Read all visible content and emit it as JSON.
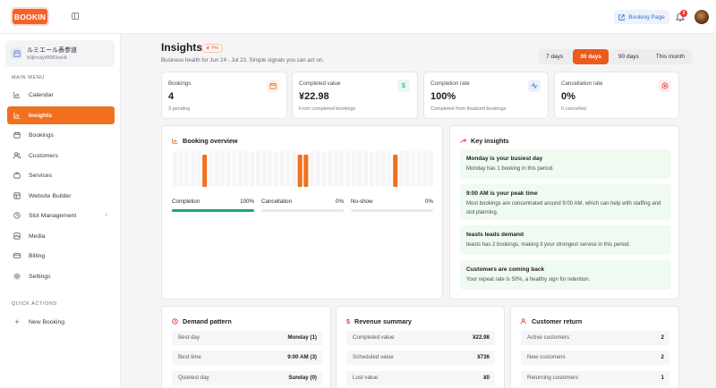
{
  "header": {
    "logo": "BOOKIN",
    "booking_page_label": "Booking Page",
    "notification_count": "5"
  },
  "sidebar": {
    "store_name": "ルミエール表参道",
    "store_id": "k0jlmulyW083orHt",
    "main_menu_label": "MAIN MENU",
    "items": [
      {
        "label": "Calendar",
        "icon": "calendar-icon"
      },
      {
        "label": "Insights",
        "icon": "bar-chart-icon"
      },
      {
        "label": "Bookings",
        "icon": "calendar-check-icon"
      },
      {
        "label": "Customers",
        "icon": "users-icon"
      },
      {
        "label": "Services",
        "icon": "briefcase-icon"
      },
      {
        "label": "Website Builder",
        "icon": "layout-icon"
      },
      {
        "label": "Slot Management",
        "icon": "clock-icon"
      },
      {
        "label": "Media",
        "icon": "image-icon"
      },
      {
        "label": "Billing",
        "icon": "credit-card-icon"
      },
      {
        "label": "Settings",
        "icon": "gear-icon"
      }
    ],
    "quick_actions_label": "QUICK ACTIONS",
    "new_booking_label": "New Booking"
  },
  "page": {
    "title": "Insights",
    "badge": "Pro",
    "subtitle": "Business health for Jun 24 - Jul 23. Simple signals you can act on.",
    "ranges": [
      "7 days",
      "30 days",
      "90 days",
      "This month"
    ],
    "active_range": "30 days"
  },
  "stats": [
    {
      "label": "Bookings",
      "value": "4",
      "sub": "3 pending",
      "icon": "calendar-icon",
      "color": "#f0701f",
      "bg": "#fff1e8"
    },
    {
      "label": "Completed value",
      "value": "¥22.98",
      "sub": "From completed bookings",
      "icon": "dollar-icon",
      "color": "#1fa86a",
      "bg": "#e9f8ef"
    },
    {
      "label": "Completion rate",
      "value": "100%",
      "sub": "Completed from finalized bookings",
      "icon": "pulse-icon",
      "color": "#3f6fc7",
      "bg": "#eaf0fb"
    },
    {
      "label": "Cancellation rate",
      "value": "0%",
      "sub": "0 cancelled",
      "icon": "cancel-icon",
      "color": "#e53935",
      "bg": "#fdecec"
    }
  ],
  "overview": {
    "title": "Booking overview",
    "bars": [
      0,
      0,
      0,
      0,
      0,
      1,
      0,
      0,
      0,
      0,
      0,
      0,
      0,
      0,
      0,
      0,
      0,
      0,
      0,
      0,
      0,
      1,
      1,
      0,
      0,
      0,
      0,
      0,
      0,
      0,
      0,
      0,
      0,
      0,
      0,
      0,
      0,
      1,
      0,
      0,
      0,
      0,
      0,
      0
    ],
    "metrics": [
      {
        "label": "Completion",
        "value": "100%",
        "fill": 1.0
      },
      {
        "label": "Cancellation",
        "value": "0%",
        "fill": 0
      },
      {
        "label": "No-show",
        "value": "0%",
        "fill": 0
      }
    ]
  },
  "insights": {
    "title": "Key insights",
    "items": [
      {
        "title": "Monday is your busiest day",
        "text": "Monday has 1 booking in this period."
      },
      {
        "title": "9:00 AM is your peak time",
        "text": "Most bookings are concentrated around 9:00 AM, which can help with staffing and slot planning."
      },
      {
        "title": "teasts leads demand",
        "text": "teasts has 2 bookings, making it your strongest service in this period."
      },
      {
        "title": "Customers are coming back",
        "text": "Your repeat rate is 50%, a healthy sign for retention."
      }
    ]
  },
  "demand": {
    "title": "Demand pattern",
    "rows": [
      {
        "label": "Best day",
        "value": "Monday (1)"
      },
      {
        "label": "Best time",
        "value": "9:00 AM (3)"
      },
      {
        "label": "Quietest day",
        "value": "Sunday (0)"
      }
    ]
  },
  "revenue": {
    "title": "Revenue summary",
    "rows": [
      {
        "label": "Completed value",
        "value": "¥22.98"
      },
      {
        "label": "Scheduled value",
        "value": "¥736"
      },
      {
        "label": "Lost value",
        "value": "¥0"
      }
    ]
  },
  "customers": {
    "title": "Customer return",
    "rows": [
      {
        "label": "Active customers",
        "value": "2"
      },
      {
        "label": "New customers",
        "value": "2"
      },
      {
        "label": "Returning customers",
        "value": "1"
      }
    ]
  },
  "colors": {
    "accent": "#f0701f",
    "success": "#1fa86a"
  }
}
